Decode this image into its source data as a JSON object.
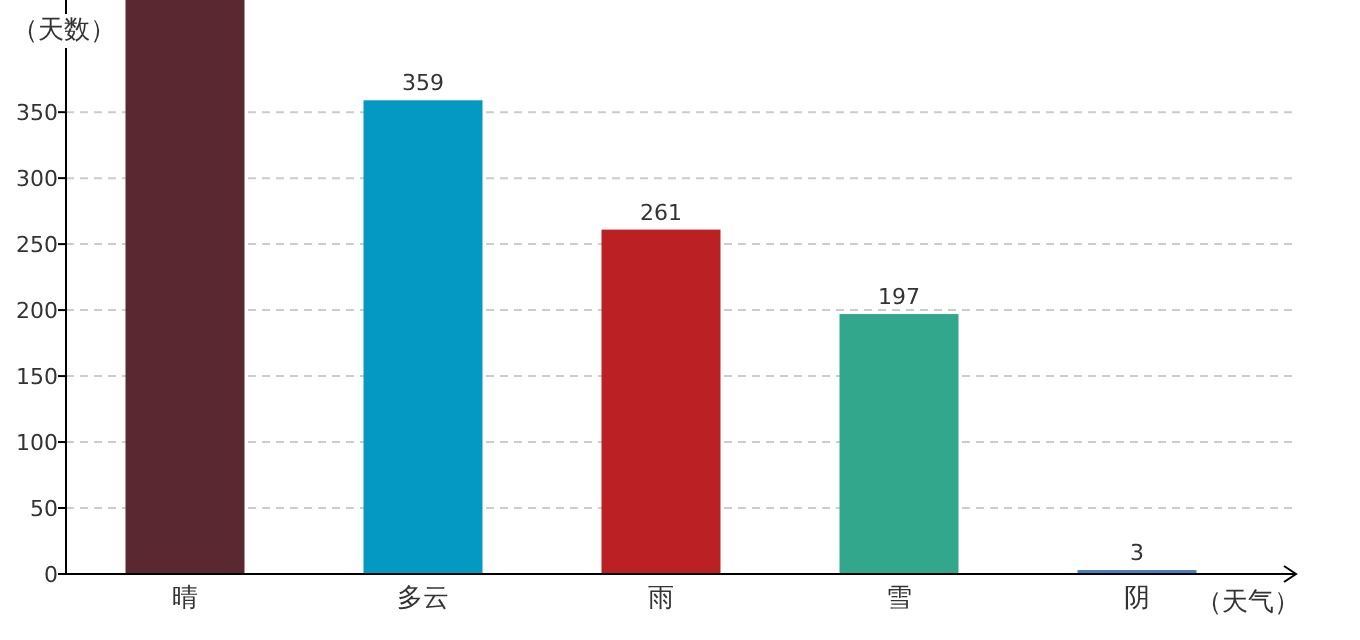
{
  "chart_data": {
    "type": "bar",
    "ylabel": "（天数）",
    "xlabel": "（天气）",
    "categories": [
      "晴",
      "多云",
      "雨",
      "雪",
      "阴"
    ],
    "values": [
      435,
      359,
      261,
      197,
      3
    ],
    "colors": [
      "#5a2830",
      "#0399c3",
      "#bb2025",
      "#33a78b",
      "#4a7ec0"
    ],
    "value_labels": [
      null,
      "359",
      "261",
      "197",
      "3"
    ],
    "ylim": [
      0,
      435
    ],
    "yticks": [
      0,
      50,
      100,
      150,
      200,
      250,
      300,
      350
    ],
    "grid": "y"
  }
}
